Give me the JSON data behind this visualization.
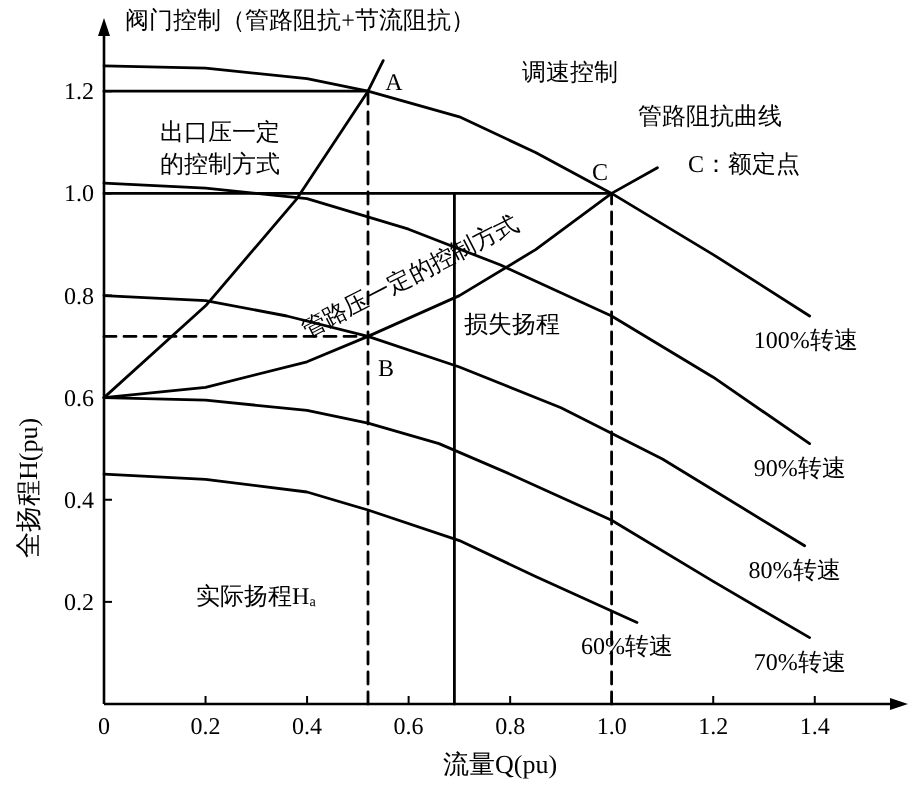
{
  "chart_data": {
    "type": "line",
    "xlabel": "流量Q(pu)",
    "ylabel": "全扬程H(pu)",
    "xlim": [
      0,
      1.56
    ],
    "ylim": [
      0,
      1.32
    ],
    "xticks": [
      0,
      0.2,
      0.4,
      0.6,
      0.8,
      {
        "value": 1,
        "label": "1.0"
      },
      1.2,
      1.4
    ],
    "yticks": [
      0.2,
      0.4,
      0.6,
      0.8,
      {
        "value": 1,
        "label": "1.0"
      },
      1.2
    ],
    "series": [
      {
        "name": "100%转速",
        "color": "#000000",
        "x": [
          0,
          0.2,
          0.4,
          0.52,
          0.7,
          0.85,
          1.0,
          1.2,
          1.39
        ],
        "values": [
          1.25,
          1.245,
          1.225,
          1.2,
          1.15,
          1.08,
          1.0,
          0.88,
          0.76
        ]
      },
      {
        "name": "90%转速",
        "color": "#000000",
        "x": [
          0,
          0.2,
          0.4,
          0.6,
          0.78,
          1.0,
          1.2,
          1.39
        ],
        "values": [
          1.02,
          1.01,
          0.99,
          0.93,
          0.86,
          0.76,
          0.64,
          0.51
        ]
      },
      {
        "name": "80%转速",
        "color": "#000000",
        "x": [
          0,
          0.2,
          0.36,
          0.52,
          0.7,
          0.9,
          1.1,
          1.38
        ],
        "values": [
          0.8,
          0.79,
          0.76,
          0.72,
          0.66,
          0.58,
          0.48,
          0.31
        ]
      },
      {
        "name": "70%转速",
        "color": "#000000",
        "x": [
          0,
          0.2,
          0.4,
          0.52,
          0.66,
          0.8,
          1.0,
          1.2,
          1.39
        ],
        "values": [
          0.6,
          0.595,
          0.575,
          0.55,
          0.51,
          0.45,
          0.36,
          0.24,
          0.13
        ]
      },
      {
        "name": "60%转速",
        "color": "#000000",
        "x": [
          0,
          0.2,
          0.4,
          0.52,
          0.7,
          0.85,
          1.05
        ],
        "values": [
          0.45,
          0.44,
          0.415,
          0.38,
          0.32,
          0.25,
          0.16
        ]
      },
      {
        "color": "#000000",
        "x": [
          0,
          0.2,
          0.4,
          0.52,
          0.7,
          0.85,
          1.0,
          1.09
        ],
        "values": [
          0.6,
          0.62,
          0.67,
          0.72,
          0.8,
          0.89,
          1.0,
          1.05
        ]
      },
      {
        "color": "#000000",
        "x": [
          0,
          0.2,
          0.38,
          0.52,
          0.55
        ],
        "values": [
          0.6,
          0.78,
          0.99,
          1.2,
          1.26
        ]
      },
      {
        "color": "#000000",
        "x": [
          0,
          1.0
        ],
        "values": [
          1.0,
          1.0
        ]
      },
      {
        "color": "#000000",
        "x": [
          0,
          0.52
        ],
        "values": [
          1.2,
          1.2
        ]
      },
      {
        "color": "#000000",
        "x": [
          0,
          0.52
        ],
        "values": [
          0.72,
          0.72
        ],
        "line_style": "dashed"
      },
      {
        "color": "#000000",
        "x": [
          0.52,
          0.52
        ],
        "values": [
          0,
          1.2
        ],
        "line_style": "dashed"
      },
      {
        "color": "#000000",
        "x": [
          1.0,
          1.0
        ],
        "values": [
          0,
          1.0
        ],
        "line_style": "dashed"
      },
      {
        "color": "#000000",
        "x": [
          0.69,
          0.69
        ],
        "values": [
          0,
          1.0
        ]
      }
    ],
    "annotations": [
      "阀门控制（管路阻抗+节流阻抗）",
      "出口压一定",
      "的控制方式",
      "调速控制",
      "管路阻抗曲线",
      "C：额定点",
      "管路压一定的控制方式",
      "损失扬程",
      "实际扬程Hₐ",
      "A",
      "B",
      "C"
    ]
  }
}
